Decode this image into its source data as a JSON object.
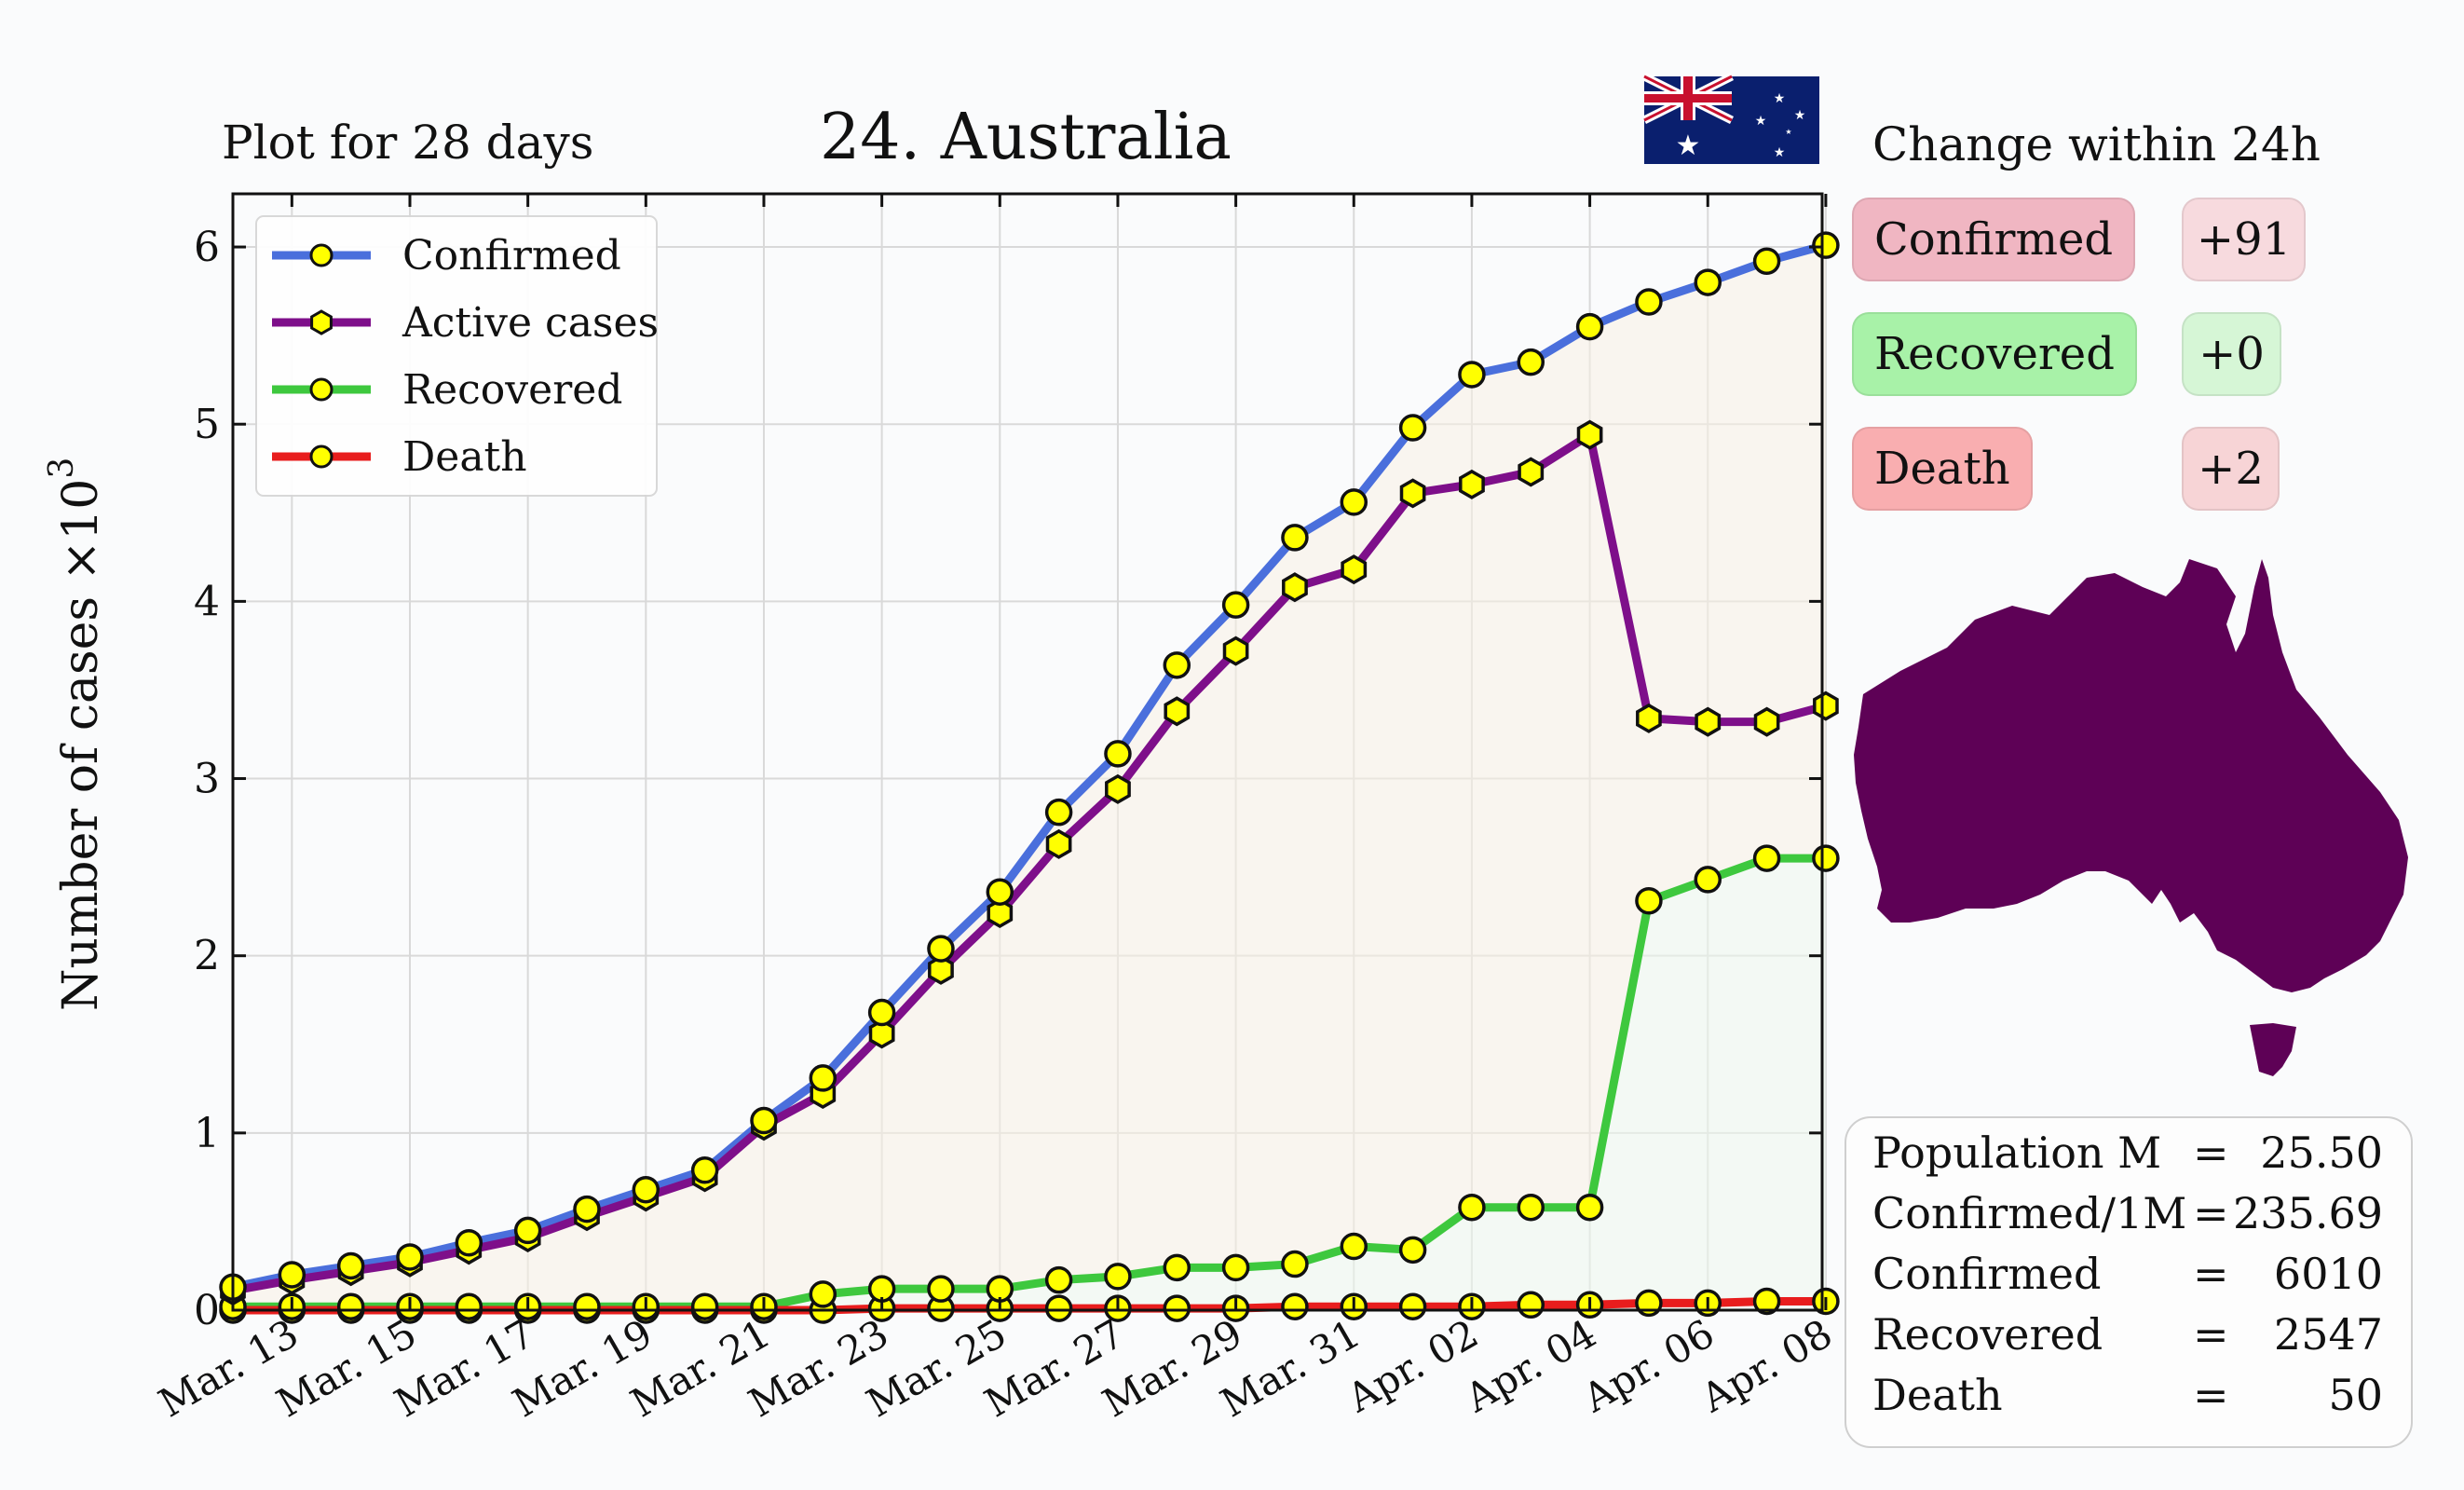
{
  "header": {
    "plot_period": "Plot for 28 days",
    "title": "24. Australia",
    "change_title": "Change within 24h",
    "flag_icon": "australia-flag-icon",
    "map_icon": "australia-map-icon"
  },
  "changes": [
    {
      "label": "Confirmed",
      "delta": "+91",
      "label_bg": "#f0b6c2",
      "delta_bg": "#f7dade"
    },
    {
      "label": "Recovered",
      "delta": "+0",
      "label_bg": "#a8f2a8",
      "delta_bg": "#d6f6d6"
    },
    {
      "label": "Death",
      "delta": "+2",
      "label_bg": "#f9aeb0",
      "delta_bg": "#f7d4d6"
    }
  ],
  "summary": [
    {
      "key": "Population M",
      "eq": "=",
      "value": "25.50"
    },
    {
      "key": "Confirmed/1M",
      "eq": "=",
      "value": "235.69"
    },
    {
      "key": "Confirmed",
      "eq": "=",
      "value": "6010"
    },
    {
      "key": "Recovered",
      "eq": "=",
      "value": "2547"
    },
    {
      "key": "Death",
      "eq": "=",
      "value": "50"
    }
  ],
  "chart_data": {
    "type": "line",
    "title": "24. Australia",
    "xlabel": "",
    "ylabel": "Number of cases ×10",
    "ylabel_sup": "3",
    "ylim": [
      0,
      6.3
    ],
    "yticks": [
      "0",
      "1",
      "2",
      "3",
      "4",
      "5",
      "6"
    ],
    "x": [
      "Mar. 12",
      "Mar. 13",
      "Mar. 14",
      "Mar. 15",
      "Mar. 16",
      "Mar. 17",
      "Mar. 18",
      "Mar. 19",
      "Mar. 20",
      "Mar. 21",
      "Mar. 22",
      "Mar. 23",
      "Mar. 24",
      "Mar. 25",
      "Mar. 26",
      "Mar. 27",
      "Mar. 28",
      "Mar. 29",
      "Mar. 30",
      "Mar. 31",
      "Apr. 01",
      "Apr. 02",
      "Apr. 03",
      "Apr. 04",
      "Apr. 05",
      "Apr. 06",
      "Apr. 07",
      "Apr. 08"
    ],
    "xtick_labels": [
      "Mar. 13",
      "Mar. 15",
      "Mar. 17",
      "Mar. 19",
      "Mar. 21",
      "Mar. 23",
      "Mar. 25",
      "Mar. 27",
      "Mar. 29",
      "Mar. 31",
      "Apr. 02",
      "Apr. 04",
      "Apr. 06",
      "Apr. 08"
    ],
    "legend_position": "top-left",
    "grid": true,
    "series": [
      {
        "name": "Confirmed",
        "color": "#4a6fdc",
        "marker": "circle",
        "values": [
          0.13,
          0.2,
          0.25,
          0.3,
          0.38,
          0.45,
          0.57,
          0.68,
          0.79,
          1.07,
          1.31,
          1.68,
          2.04,
          2.36,
          2.81,
          3.14,
          3.64,
          3.98,
          4.36,
          4.56,
          4.98,
          5.28,
          5.35,
          5.55,
          5.69,
          5.8,
          5.92,
          6.01
        ]
      },
      {
        "name": "Active cases",
        "color": "#7e0f8a",
        "marker": "hexagon",
        "values": [
          0.11,
          0.17,
          0.22,
          0.27,
          0.34,
          0.41,
          0.53,
          0.64,
          0.75,
          1.04,
          1.22,
          1.56,
          1.92,
          2.24,
          2.63,
          2.94,
          3.38,
          3.72,
          4.08,
          4.18,
          4.61,
          4.66,
          4.73,
          4.94,
          3.34,
          3.32,
          3.32,
          3.41
        ]
      },
      {
        "name": "Recovered",
        "color": "#3ec83e",
        "marker": "circle",
        "values": [
          0.02,
          0.02,
          0.02,
          0.02,
          0.02,
          0.02,
          0.02,
          0.02,
          0.02,
          0.02,
          0.09,
          0.12,
          0.12,
          0.12,
          0.17,
          0.19,
          0.24,
          0.24,
          0.26,
          0.36,
          0.34,
          0.58,
          0.58,
          0.58,
          2.31,
          2.43,
          2.55,
          2.55
        ]
      },
      {
        "name": "Death",
        "color": "#e81d1d",
        "marker": "circle",
        "values": [
          0.0,
          0.0,
          0.0,
          0.0,
          0.0,
          0.0,
          0.0,
          0.0,
          0.0,
          0.0,
          0.0,
          0.01,
          0.01,
          0.01,
          0.01,
          0.01,
          0.01,
          0.01,
          0.02,
          0.02,
          0.02,
          0.02,
          0.03,
          0.03,
          0.04,
          0.04,
          0.05,
          0.05
        ]
      }
    ]
  }
}
